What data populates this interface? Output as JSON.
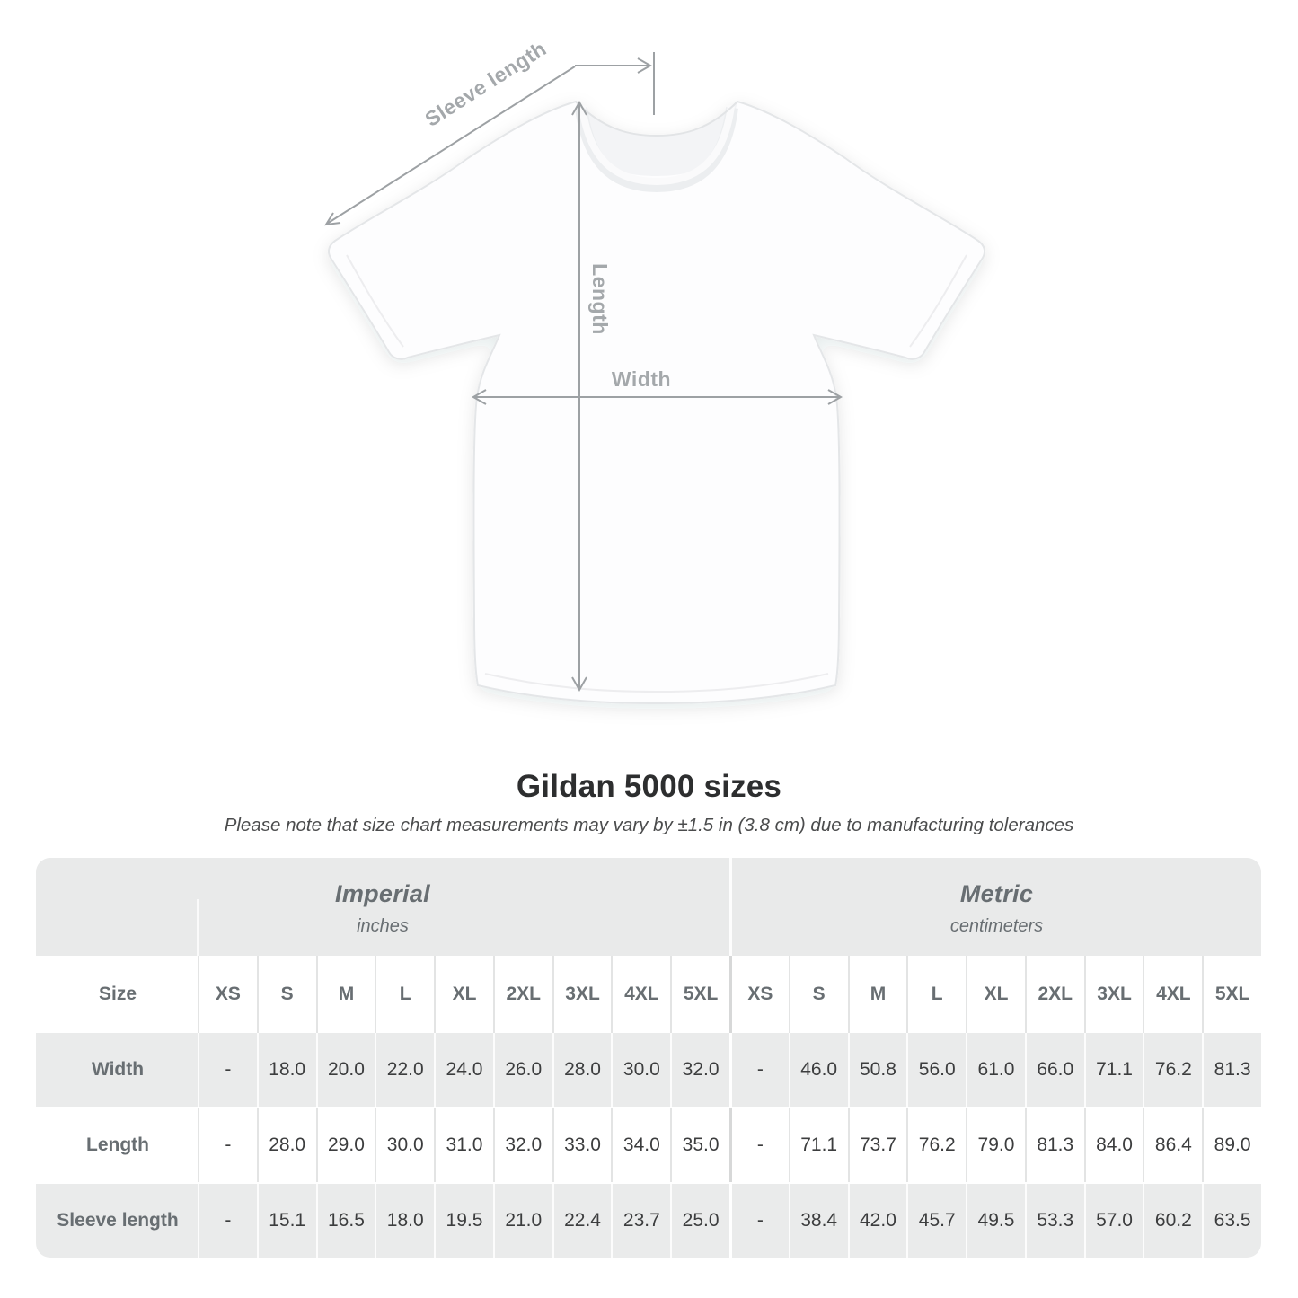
{
  "colors": {
    "band-gray": "#e9eaea",
    "row-gray": "#eaebeb",
    "header-text": "#686e72",
    "value-text": "#3c3d3e",
    "title-text": "#2d2e2f",
    "subtitle-text": "#4b4c4d",
    "diagram-gray": "#9da1a4",
    "diagram-label": "#a4a8ab"
  },
  "diagram": {
    "sleeve_label": "Sleeve length",
    "length_label": "Length",
    "width_label": "Width"
  },
  "heading": {
    "title": "Gildan 5000 sizes",
    "subtitle": "Please note that size chart measurements may vary by ±1.5 in (3.8 cm) due to manufacturing tolerances"
  },
  "table": {
    "size_label": "Size",
    "unit_groups": [
      {
        "label": "Imperial",
        "sublabel": "inches"
      },
      {
        "label": "Metric",
        "sublabel": "centimeters"
      }
    ],
    "sizes": [
      "XS",
      "S",
      "M",
      "L",
      "XL",
      "2XL",
      "3XL",
      "4XL",
      "5XL"
    ],
    "rows": [
      {
        "label": "Width",
        "imperial": [
          "-",
          "18.0",
          "20.0",
          "22.0",
          "24.0",
          "26.0",
          "28.0",
          "30.0",
          "32.0"
        ],
        "metric": [
          "-",
          "46.0",
          "50.8",
          "56.0",
          "61.0",
          "66.0",
          "71.1",
          "76.2",
          "81.3"
        ]
      },
      {
        "label": "Length",
        "imperial": [
          "-",
          "28.0",
          "29.0",
          "30.0",
          "31.0",
          "32.0",
          "33.0",
          "34.0",
          "35.0"
        ],
        "metric": [
          "-",
          "71.1",
          "73.7",
          "76.2",
          "79.0",
          "81.3",
          "84.0",
          "86.4",
          "89.0"
        ]
      },
      {
        "label": "Sleeve length",
        "imperial": [
          "-",
          "15.1",
          "16.5",
          "18.0",
          "19.5",
          "21.0",
          "22.4",
          "23.7",
          "25.0"
        ],
        "metric": [
          "-",
          "38.4",
          "42.0",
          "45.7",
          "49.5",
          "53.3",
          "57.0",
          "60.2",
          "63.5"
        ]
      }
    ]
  }
}
